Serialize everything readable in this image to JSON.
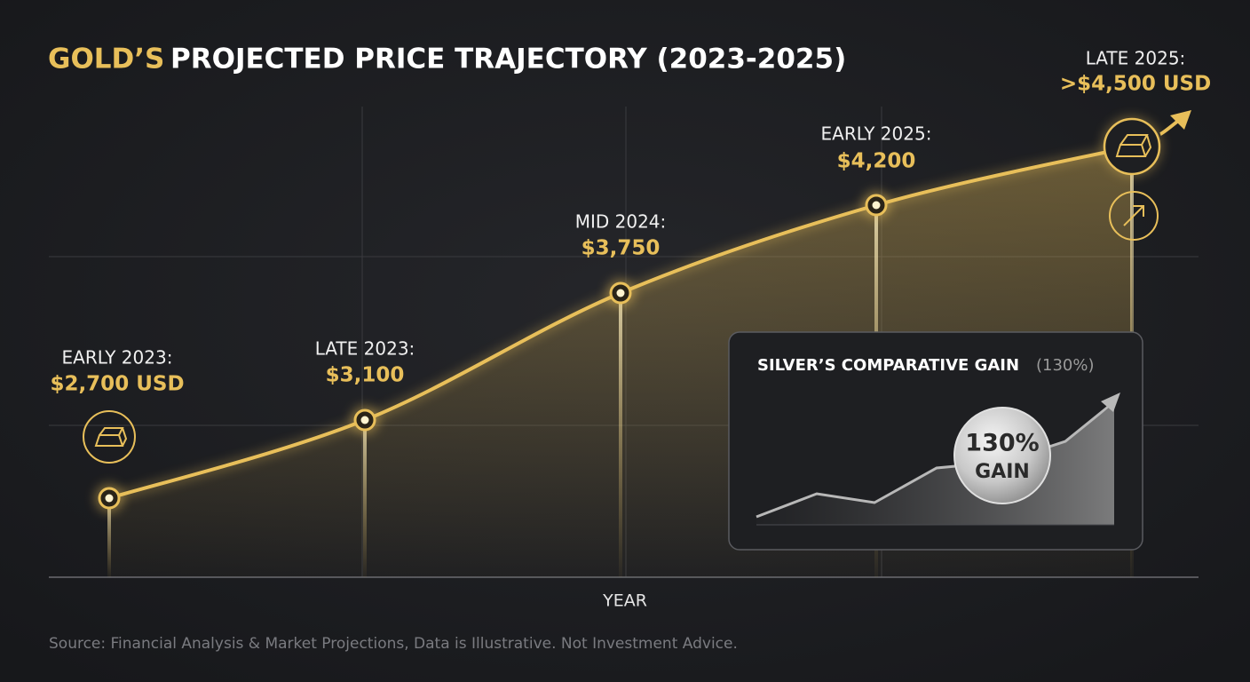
{
  "chart_data": {
    "type": "line",
    "title_highlight": "GOLD’S",
    "title": "PROJECTED PRICE TRAJECTORY (2023-2025)",
    "x_label": "YEAR",
    "categories": [
      "EARLY 2023:",
      "LATE 2023:",
      "MID 2024:",
      "EARLY 2025:",
      "LATE 2025:"
    ],
    "values": [
      2700,
      3100,
      3750,
      4200,
      4500
    ],
    "value_labels": [
      "$2,700 USD",
      "$3,100",
      "$3,750",
      "$4,200",
      ">$4,500 USD"
    ],
    "color": "#e8bf5a",
    "grid": true
  },
  "inset": {
    "title": "SILVER’S COMPARATIVE GAIN",
    "title_note": "(130%)",
    "badge_value": "130%",
    "badge_label": "GAIN"
  },
  "footer": {
    "source": "Source: Financial Analysis & Market Projections, Data is Illustrative. Not Investment Advice."
  }
}
